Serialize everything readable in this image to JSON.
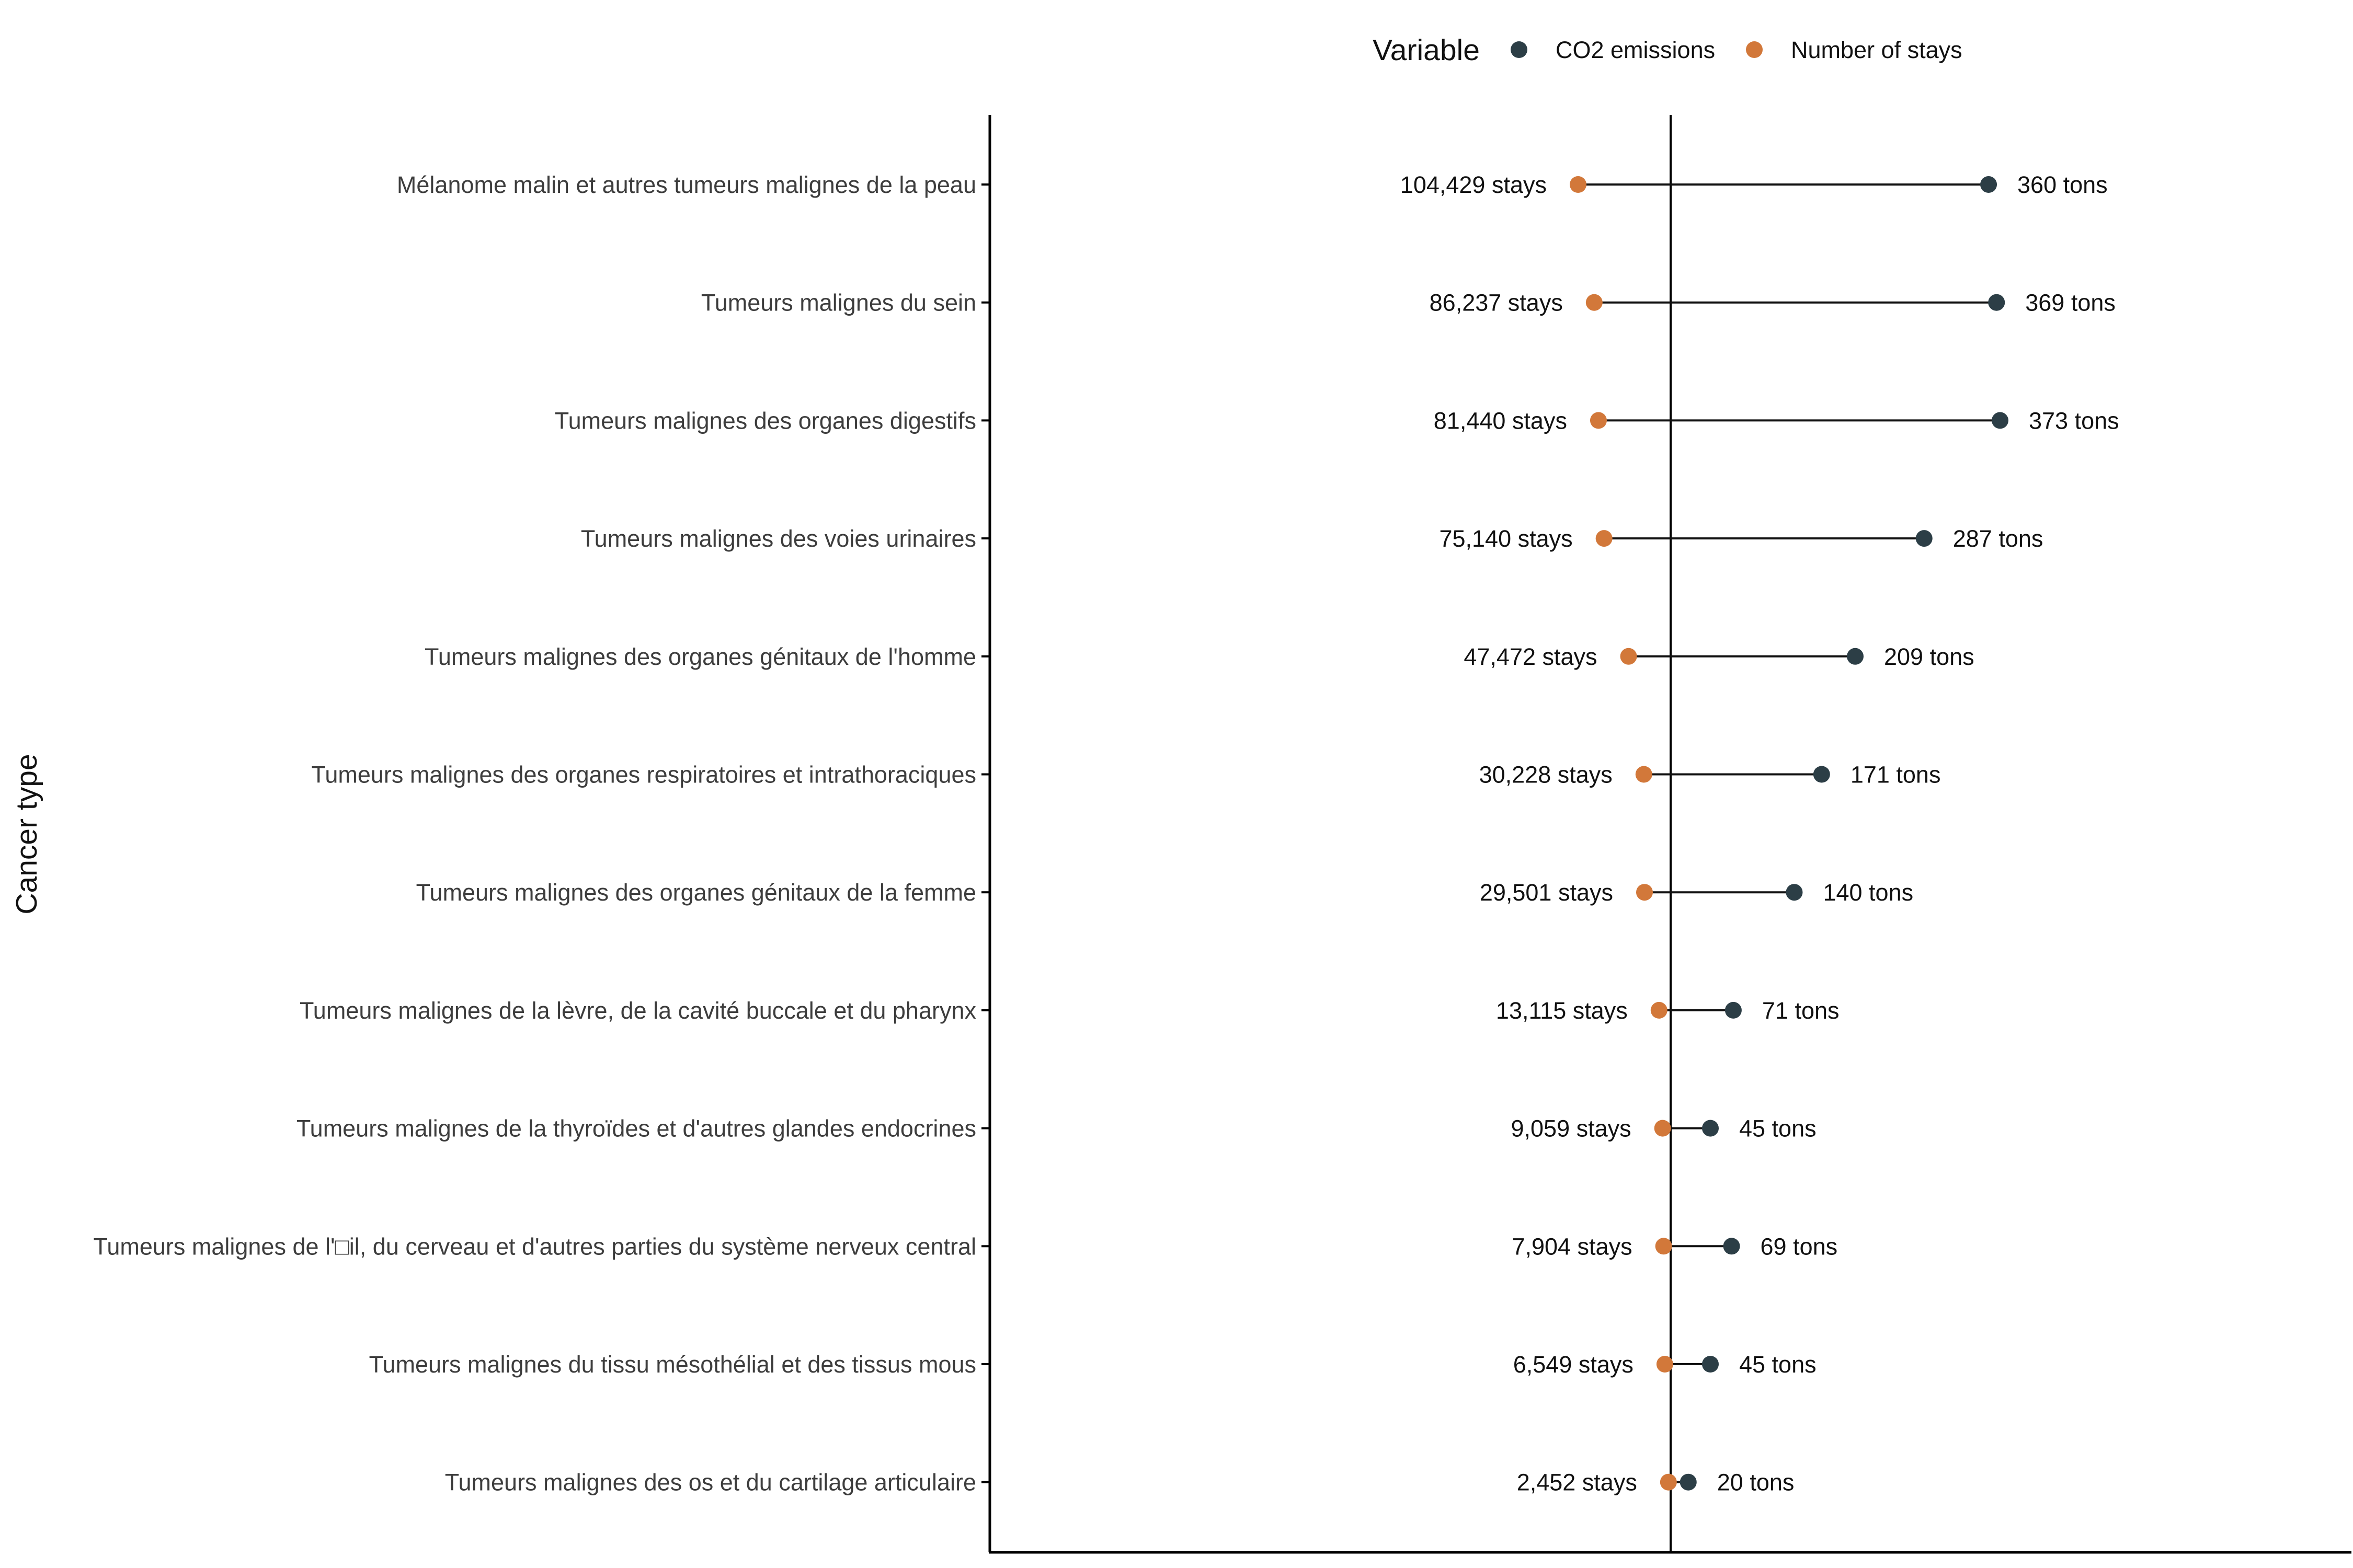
{
  "chart_data": {
    "type": "dot-dumbbell",
    "ylabel": "Cancer type",
    "legend": {
      "title": "Variable",
      "placement": "top",
      "items": [
        {
          "name": "CO2 emissions",
          "color": "#2c3e46"
        },
        {
          "name": "Number of stays",
          "color": "#d2783a"
        }
      ]
    },
    "categories": [
      "Mélanome malin et autres tumeurs malignes de la peau",
      "Tumeurs malignes du sein",
      "Tumeurs malignes des organes digestifs",
      "Tumeurs malignes des voies urinaires",
      "Tumeurs malignes des organes génitaux de l'homme",
      "Tumeurs malignes des organes respiratoires et intrathoraciques",
      "Tumeurs malignes des organes génitaux de la femme",
      "Tumeurs malignes de la lèvre, de la cavité buccale et du pharynx",
      "Tumeurs malignes de la thyroïdes et d'autres glandes endocrines",
      "Tumeurs malignes de l'□il, du cerveau et d'autres parties du système nerveux central",
      "Tumeurs malignes du tissu mésothélial et des tissus mous",
      "Tumeurs malignes des os et du cartilage articulaire"
    ],
    "series": [
      {
        "name": "CO2 emissions",
        "color": "#2c3e46",
        "values": [
          360,
          369,
          373,
          287,
          209,
          171,
          140,
          71,
          45,
          69,
          45,
          20
        ],
        "labels": [
          "360 tons",
          "369 tons",
          "373 tons",
          "287 tons",
          "209 tons",
          "171 tons",
          "140 tons",
          "71 tons",
          "45 tons",
          "69 tons",
          "45 tons",
          "20 tons"
        ]
      },
      {
        "name": "Number of stays",
        "color": "#d2783a",
        "values": [
          104429,
          86237,
          81440,
          75140,
          47472,
          30228,
          29501,
          13115,
          9059,
          7904,
          6549,
          2452
        ],
        "labels": [
          "104,429 stays",
          "86,237 stays",
          "81,440 stays",
          "75,140 stays",
          "47,472 stays",
          "30,228 stays",
          "29,501 stays",
          "13,115 stays",
          "9,059 stays",
          "7,904 stays",
          "6,549 stays",
          "2,452 stays"
        ]
      }
    ]
  }
}
